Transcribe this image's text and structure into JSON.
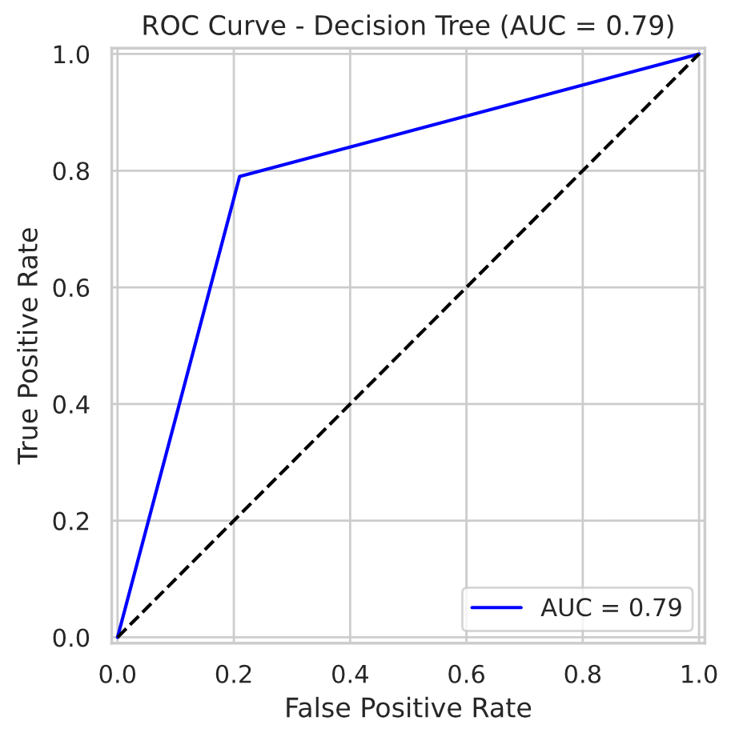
{
  "chart_data": {
    "type": "line",
    "title": "ROC Curve - Decision Tree (AUC = 0.79)",
    "xlabel": "False Positive Rate",
    "ylabel": "True Positive Rate",
    "series": [
      {
        "name": "AUC = 0.79",
        "color": "#0000ff",
        "x": [
          0,
          0.21,
          1
        ],
        "values": [
          0,
          0.79,
          1
        ],
        "line_style": "solid"
      },
      {
        "color": "#000000",
        "x": [
          0,
          1
        ],
        "values": [
          0,
          1
        ],
        "line_style": "dashed"
      }
    ],
    "xlim": [
      -0.01,
      1.01
    ],
    "ylim": [
      -0.01,
      1.01
    ],
    "xticks": [
      {
        "value": 0,
        "label": "0.0"
      },
      0.2,
      0.4,
      0.6,
      0.8,
      {
        "value": 1,
        "label": "1.0"
      }
    ],
    "yticks": [
      {
        "value": 0,
        "label": "0.0"
      },
      0.2,
      0.4,
      0.6,
      0.8,
      {
        "value": 1,
        "label": "1.0"
      }
    ],
    "grid": true,
    "legend": "lower right",
    "marker": "none"
  }
}
